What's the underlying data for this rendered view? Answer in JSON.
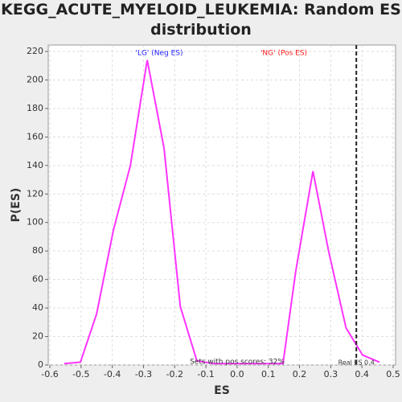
{
  "chart_data": {
    "type": "line",
    "title": "KEGG_ACUTE_MYELOID_LEUKEMIA: Random ES distribution",
    "x_label": "ES",
    "y_label": "P(ES)",
    "x": [
      -0.554,
      -0.502,
      -0.45,
      -0.396,
      -0.342,
      -0.288,
      -0.234,
      -0.182,
      -0.129,
      -0.077,
      0.147,
      0.188,
      0.243,
      0.294,
      0.349,
      0.402,
      0.456
    ],
    "values": [
      1,
      2,
      36,
      95,
      140,
      214,
      152,
      41,
      3,
      1,
      1,
      66,
      136,
      79,
      26,
      7,
      2
    ],
    "color": "#ff33ff",
    "xlim": [
      -0.6,
      0.5
    ],
    "xticks": [
      -0.6,
      -0.5,
      -0.4,
      -0.3,
      -0.2,
      -0.1,
      {
        "value": 0,
        "label": "0.0"
      },
      0.1,
      0.2,
      0.3,
      0.4,
      0.5
    ],
    "ylim": [
      0,
      225
    ],
    "yticks": [
      0,
      20,
      40,
      60,
      80,
      100,
      120,
      140,
      160,
      180,
      200,
      220
    ],
    "grid": true,
    "neg_label": "'LG' (Neg ES)",
    "pos_label": "'NG' (Pos ES)",
    "pos_scores_label": "Sets with pos scores: 32%",
    "real_es": {
      "value": 0.382,
      "label": "Real ES 0.4"
    }
  }
}
